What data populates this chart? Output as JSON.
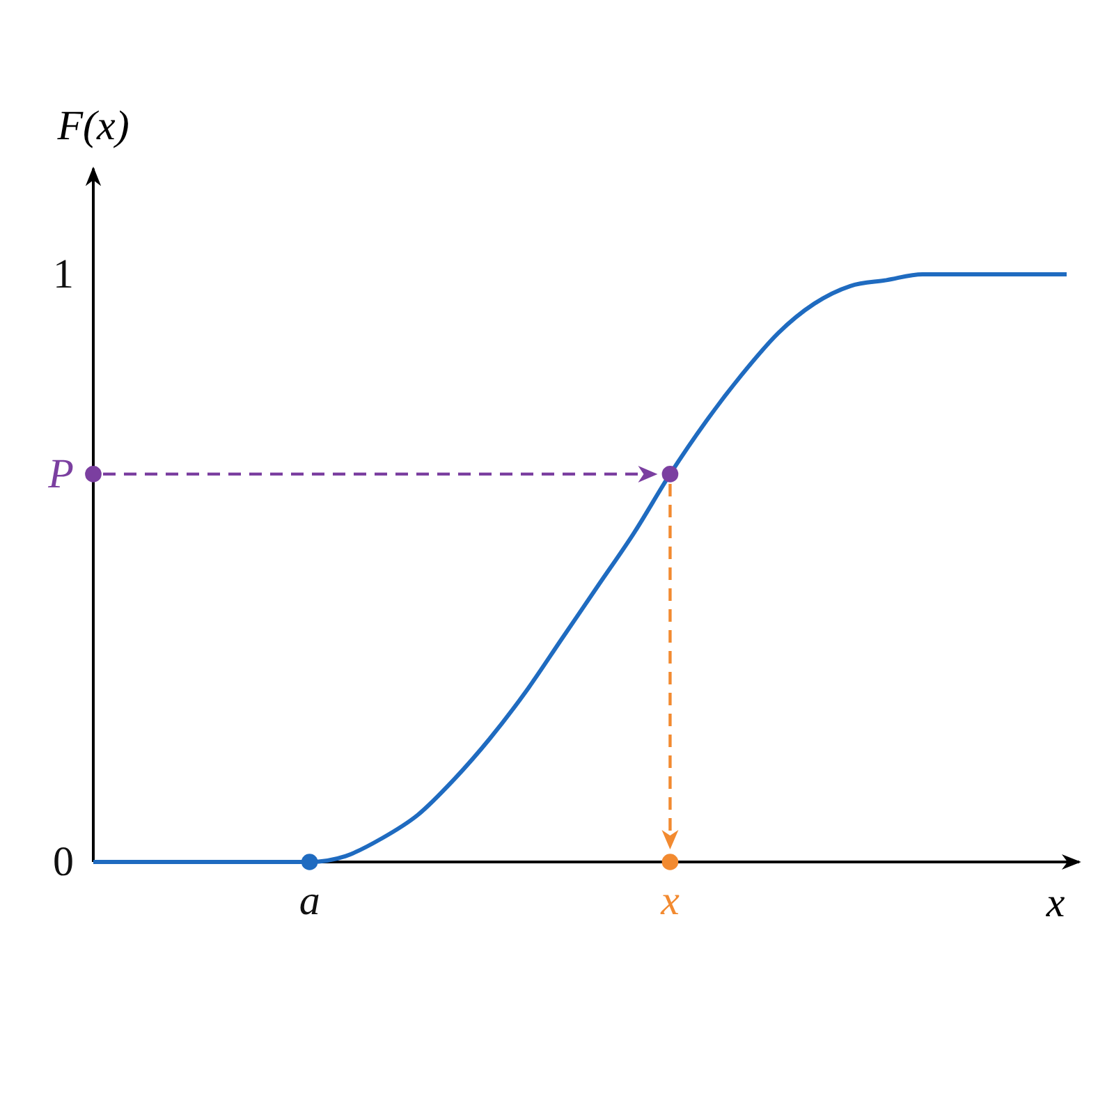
{
  "chart_data": {
    "type": "line",
    "xlabel": "x",
    "ylabel": "F(x)",
    "categories": [
      null,
      null,
      null,
      null,
      null,
      null,
      "a",
      null,
      null,
      null,
      null,
      null,
      null,
      null,
      null,
      null,
      "x",
      null,
      null,
      null,
      null,
      null,
      null,
      null,
      null,
      null,
      null,
      null
    ],
    "ylim": [
      0,
      1.18
    ],
    "yticks": [
      0,
      {
        "value": 0.66,
        "label": "P"
      },
      1
    ],
    "series": [
      {
        "color": "#1f6bc0",
        "marker": "none",
        "values": [
          0,
          0,
          0,
          0,
          0,
          0,
          0,
          0.01,
          0.04,
          0.08,
          0.14,
          0.21,
          0.29,
          0.38,
          0.47,
          0.56,
          0.66,
          0.75,
          0.83,
          0.9,
          0.95,
          0.98,
          0.99,
          1,
          1,
          1,
          1,
          1
        ]
      },
      {
        "type": "scatter",
        "color": "#1f6bc0",
        "marker": "circle",
        "values": [
          null,
          null,
          null,
          null,
          null,
          null,
          0,
          null,
          null,
          null,
          null,
          null,
          null,
          null,
          null,
          null,
          null,
          null,
          null,
          null,
          null,
          null,
          null,
          null,
          null,
          null,
          null,
          null
        ]
      },
      {
        "type": "scatter",
        "color": "#7b3fa0",
        "marker": "circle",
        "values": [
          0.66,
          null,
          null,
          null,
          null,
          null,
          null,
          null,
          null,
          null,
          null,
          null,
          null,
          null,
          null,
          null,
          0.66,
          null,
          null,
          null,
          null,
          null,
          null,
          null,
          null,
          null,
          null,
          null
        ]
      },
      {
        "type": "scatter",
        "color": "#f28a30",
        "marker": "circle",
        "values": [
          null,
          null,
          null,
          null,
          null,
          null,
          null,
          null,
          null,
          null,
          null,
          null,
          null,
          null,
          null,
          null,
          0,
          null,
          null,
          null,
          null,
          null,
          null,
          null,
          null,
          null,
          null,
          null
        ]
      }
    ],
    "grid": false
  }
}
